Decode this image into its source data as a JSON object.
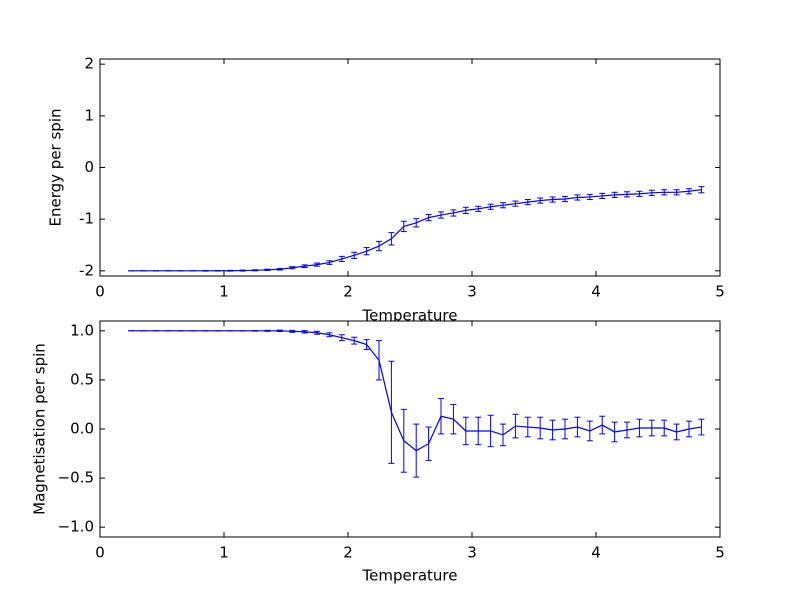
{
  "chart_data": [
    {
      "type": "line",
      "color": "#0000ff",
      "xlabel": "Temperature",
      "ylabel": "Energy per spin",
      "x": [
        0.25,
        0.35,
        0.45,
        0.55,
        0.65,
        0.75,
        0.85,
        0.95,
        1.05,
        1.15,
        1.25,
        1.35,
        1.45,
        1.55,
        1.65,
        1.75,
        1.85,
        1.95,
        2.05,
        2.15,
        2.25,
        2.35,
        2.45,
        2.55,
        2.65,
        2.75,
        2.85,
        2.95,
        3.05,
        3.15,
        3.25,
        3.35,
        3.45,
        3.55,
        3.65,
        3.75,
        3.85,
        3.95,
        4.05,
        4.15,
        4.25,
        4.35,
        4.45,
        4.55,
        4.65,
        4.75,
        4.85
      ],
      "values": [
        -2,
        -2,
        -2,
        -2,
        -2,
        -2,
        -2,
        -1.999,
        -1.998,
        -1.995,
        -1.99,
        -1.98,
        -1.97,
        -1.94,
        -1.91,
        -1.88,
        -1.84,
        -1.77,
        -1.7,
        -1.62,
        -1.52,
        -1.38,
        -1.14,
        -1.07,
        -0.97,
        -0.92,
        -0.88,
        -0.83,
        -0.8,
        -0.76,
        -0.73,
        -0.7,
        -0.67,
        -0.64,
        -0.62,
        -0.61,
        -0.58,
        -0.57,
        -0.55,
        -0.53,
        -0.52,
        -0.51,
        -0.49,
        -0.48,
        -0.48,
        -0.46,
        -0.43
      ],
      "errors": [
        0,
        0,
        0,
        0,
        0,
        0,
        0.005,
        0.005,
        0.008,
        0.01,
        0.01,
        0.012,
        0.015,
        0.02,
        0.025,
        0.03,
        0.035,
        0.05,
        0.06,
        0.07,
        0.09,
        0.12,
        0.1,
        0.08,
        0.06,
        0.06,
        0.06,
        0.06,
        0.05,
        0.05,
        0.05,
        0.05,
        0.05,
        0.05,
        0.05,
        0.05,
        0.05,
        0.05,
        0.05,
        0.05,
        0.05,
        0.05,
        0.05,
        0.05,
        0.05,
        0.05,
        0.06
      ],
      "xlim": [
        0,
        5
      ],
      "xticks": [
        0,
        1,
        2,
        3,
        4,
        5
      ],
      "ylim": [
        -2.1,
        2.1
      ],
      "yticks": [
        -2,
        -1,
        0,
        1,
        2
      ]
    },
    {
      "type": "line",
      "color": "#0000ff",
      "xlabel": "Temperature",
      "ylabel": "Magnetisation per spin",
      "x": [
        0.25,
        0.35,
        0.45,
        0.55,
        0.65,
        0.75,
        0.85,
        0.95,
        1.05,
        1.15,
        1.25,
        1.35,
        1.45,
        1.55,
        1.65,
        1.75,
        1.85,
        1.95,
        2.05,
        2.15,
        2.25,
        2.35,
        2.45,
        2.55,
        2.65,
        2.75,
        2.85,
        2.95,
        3.05,
        3.15,
        3.25,
        3.35,
        3.45,
        3.55,
        3.65,
        3.75,
        3.85,
        3.95,
        4.05,
        4.15,
        4.25,
        4.35,
        4.45,
        4.55,
        4.65,
        4.75,
        4.85
      ],
      "values": [
        1,
        1,
        1,
        1,
        1,
        1,
        1,
        1,
        1,
        1,
        1,
        1,
        1,
        0.995,
        0.99,
        0.98,
        0.96,
        0.93,
        0.9,
        0.86,
        0.7,
        0.17,
        -0.12,
        -0.22,
        -0.15,
        0.13,
        0.1,
        -0.02,
        -0.02,
        -0.02,
        -0.06,
        0.03,
        0.02,
        0.01,
        -0.01,
        0,
        0.02,
        -0.02,
        0.04,
        -0.03,
        -0.01,
        0.01,
        0.01,
        0.01,
        -0.03,
        0,
        0.02
      ],
      "errors": [
        0,
        0,
        0,
        0,
        0,
        0,
        0,
        0,
        0,
        0,
        0.003,
        0.005,
        0.007,
        0.01,
        0.012,
        0.015,
        0.02,
        0.03,
        0.035,
        0.05,
        0.2,
        0.52,
        0.32,
        0.27,
        0.17,
        0.18,
        0.15,
        0.14,
        0.14,
        0.16,
        0.11,
        0.12,
        0.1,
        0.11,
        0.1,
        0.1,
        0.1,
        0.1,
        0.09,
        0.1,
        0.08,
        0.09,
        0.08,
        0.08,
        0.08,
        0.08,
        0.08
      ],
      "xlim": [
        0,
        5
      ],
      "xticks": [
        0,
        1,
        2,
        3,
        4,
        5
      ],
      "ylim": [
        -1.1,
        1.1
      ],
      "yticks": [
        {
          "value": 1.0,
          "label": "1.0"
        },
        {
          "value": 0.5,
          "label": "0.5"
        },
        {
          "value": 0.0,
          "label": "0.0"
        },
        {
          "value": -0.5,
          "label": "−0.5"
        },
        {
          "value": -1.0,
          "label": "−1.0"
        }
      ]
    }
  ]
}
